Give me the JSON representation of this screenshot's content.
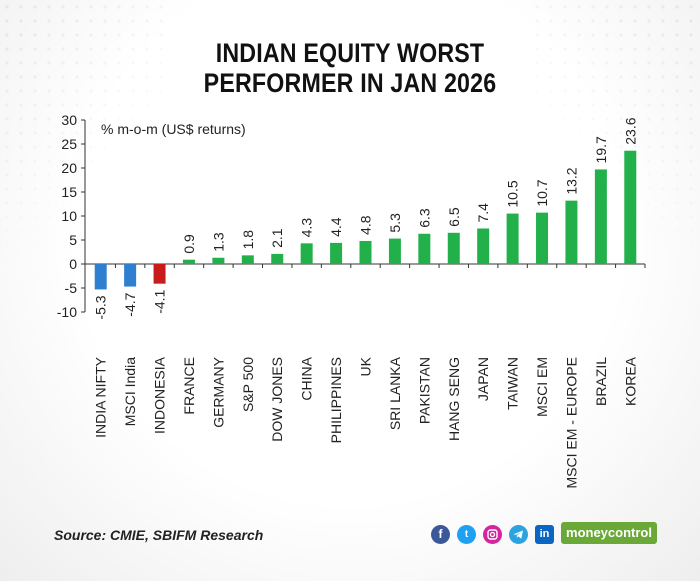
{
  "title_lines": [
    "INDIAN EQUITY WORST",
    "PERFORMER IN JAN 2026"
  ],
  "source": "Source: CMIE, SBIFM Research",
  "brand": "moneycontrol",
  "social_icons": [
    "facebook-icon",
    "twitter-icon",
    "instagram-icon",
    "telegram-icon",
    "linkedin-icon"
  ],
  "colors": {
    "positive": "#22b04b",
    "negative": "#2f7fd0",
    "highlight_negative": "#c81c1c",
    "facebook": "#3b5998",
    "twitter": "#1da1f2",
    "instagram": "#d6249f",
    "telegram": "#2aa3df",
    "linkedin": "#0a66c2",
    "brand": "#6aa837"
  },
  "chart_data": {
    "type": "bar",
    "title": "INDIAN EQUITY WORST PERFORMER IN JAN 2026",
    "ylabel": "% m-o-m (US$ returns)",
    "xlabel": "",
    "ylim": [
      -10,
      30
    ],
    "yticks": [
      -10,
      -5,
      0,
      5,
      10,
      15,
      20,
      25,
      30
    ],
    "grid": false,
    "legend": "none",
    "categories": [
      "INDIA NIFTY",
      "MSCI India",
      "INDONESIA",
      "FRANCE",
      "GERMANY",
      "S&P 500",
      "DOW JONES",
      "CHINA",
      "PHILIPPINES",
      "UK",
      "SRI LANKA",
      "PAKISTAN",
      "HANG SENG",
      "JAPAN",
      "TAIWAN",
      "MSCI EM",
      "MSCI EM - EUROPE",
      "BRAZIL",
      "KOREA"
    ],
    "values": [
      -5.3,
      -4.7,
      -4.1,
      0.9,
      1.3,
      1.8,
      2.1,
      4.3,
      4.4,
      4.8,
      5.3,
      6.3,
      6.5,
      7.4,
      10.5,
      10.7,
      13.2,
      19.7,
      23.6
    ],
    "bar_colors": [
      "#2f7fd0",
      "#2f7fd0",
      "#c81c1c",
      "#22b04b",
      "#22b04b",
      "#22b04b",
      "#22b04b",
      "#22b04b",
      "#22b04b",
      "#22b04b",
      "#22b04b",
      "#22b04b",
      "#22b04b",
      "#22b04b",
      "#22b04b",
      "#22b04b",
      "#22b04b",
      "#22b04b",
      "#22b04b"
    ]
  }
}
